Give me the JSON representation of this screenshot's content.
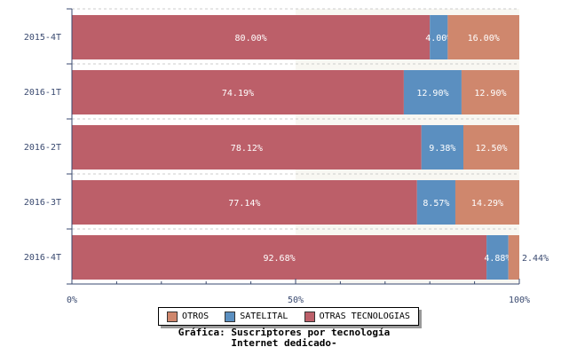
{
  "chart_data": {
    "type": "bar",
    "orientation": "horizontal",
    "stacked": true,
    "categories": [
      "2015-4T",
      "2016-1T",
      "2016-2T",
      "2016-3T",
      "2016-4T"
    ],
    "series": [
      {
        "name": "OTRAS TECNOLOGIAS",
        "color": "#bc5f69",
        "values": [
          80.0,
          74.19,
          78.12,
          77.14,
          92.68
        ],
        "labels": [
          "80.00%",
          "74.19%",
          "78.12%",
          "77.14%",
          "92.68%"
        ]
      },
      {
        "name": "SATELITAL",
        "color": "#5b8fc0",
        "values": [
          4.0,
          12.9,
          9.38,
          8.57,
          4.88
        ],
        "labels": [
          "4.00%",
          "12.90%",
          "9.38%",
          "8.57%",
          "4.88%"
        ]
      },
      {
        "name": "OTROS",
        "color": "#cf876d",
        "values": [
          16.0,
          12.9,
          12.5,
          14.29,
          2.44
        ],
        "labels": [
          "16.00%",
          "12.90%",
          "12.50%",
          "14.29%",
          "2.44%"
        ]
      }
    ],
    "xlim": [
      0,
      100
    ],
    "xticks": [
      "0%",
      "50%",
      "100%"
    ],
    "legend_order": [
      "OTROS",
      "SATELITAL",
      "OTRAS TECNOLOGIAS"
    ],
    "legend_position": "bottom",
    "title_lines": [
      "Gráfica: Suscriptores por tecnología",
      "Internet dedicado-"
    ]
  }
}
